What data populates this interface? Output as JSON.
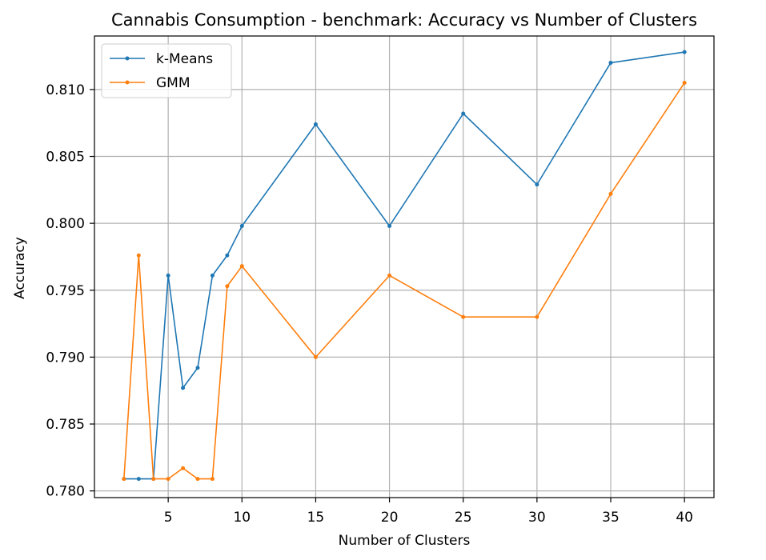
{
  "chart_data": {
    "type": "line",
    "title": "Cannabis Consumption - benchmark: Accuracy vs Number of Clusters",
    "xlabel": "Number of Clusters",
    "ylabel": "Accuracy",
    "xlim": [
      0,
      42
    ],
    "ylim": [
      0.7795,
      0.814
    ],
    "xticks": [
      5,
      10,
      15,
      20,
      25,
      30,
      35,
      40
    ],
    "xtick_labels": [
      "5",
      "10",
      "15",
      "20",
      "25",
      "30",
      "35",
      "40"
    ],
    "yticks": [
      0.78,
      0.785,
      0.79,
      0.795,
      0.8,
      0.805,
      0.81
    ],
    "ytick_labels": [
      "0.780",
      "0.785",
      "0.790",
      "0.795",
      "0.800",
      "0.805",
      "0.810"
    ],
    "grid": true,
    "legend_position": "top-left",
    "x": [
      2,
      3,
      4,
      5,
      6,
      7,
      8,
      9,
      10,
      15,
      20,
      25,
      30,
      35,
      40
    ],
    "series": [
      {
        "name": "k-Means",
        "color": "#1f77b4",
        "values": [
          0.7809,
          0.7809,
          0.7809,
          0.7961,
          0.7877,
          0.7892,
          0.7961,
          0.7976,
          0.7998,
          0.8074,
          0.7998,
          0.8082,
          0.8029,
          0.812,
          0.8128
        ]
      },
      {
        "name": "GMM",
        "color": "#ff7f0e",
        "values": [
          0.7809,
          0.7976,
          0.7809,
          0.7809,
          0.7817,
          0.7809,
          0.7809,
          0.7953,
          0.7968,
          0.79,
          0.7961,
          0.793,
          0.793,
          0.8022,
          0.8105
        ]
      }
    ]
  }
}
